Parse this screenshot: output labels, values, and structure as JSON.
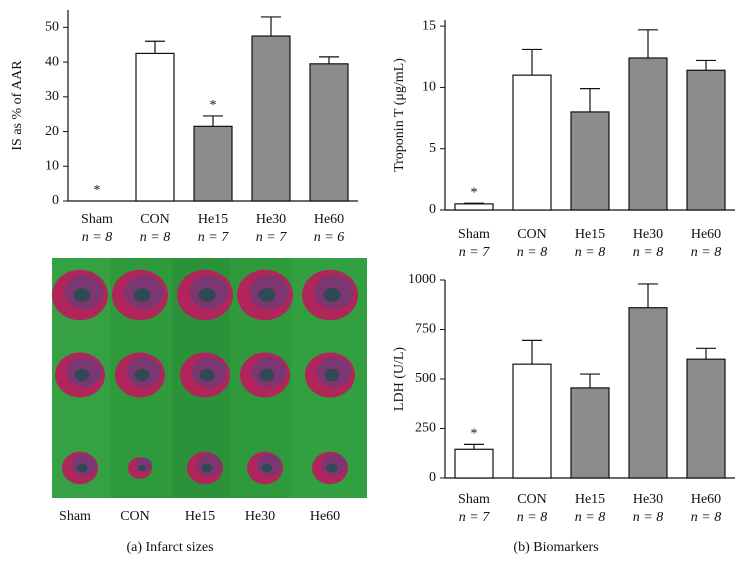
{
  "chart_data": [
    {
      "type": "bar",
      "ylabel": "IS as % of AAR",
      "categories": [
        "Sham",
        "CON",
        "He15",
        "He30",
        "He60"
      ],
      "group_sizes": [
        "n = 8",
        "n = 8",
        "n = 7",
        "n = 7",
        "n = 6"
      ],
      "values": [
        0,
        42.5,
        21.5,
        47.5,
        39.5
      ],
      "errors": [
        0,
        3.5,
        3,
        5.5,
        2
      ],
      "colors": [
        "#ffffff",
        "#ffffff",
        "#8c8c8c",
        "#8c8c8c",
        "#8c8c8c"
      ],
      "annotations": [
        "*",
        null,
        "*",
        null,
        null
      ],
      "ylim": [
        0,
        55
      ],
      "yticks": [
        0,
        10,
        20,
        30,
        40,
        50
      ]
    },
    {
      "type": "bar",
      "ylabel": "Troponin T (μg/mL)",
      "categories": [
        "Sham",
        "CON",
        "He15",
        "He30",
        "He60"
      ],
      "group_sizes": [
        "n = 7",
        "n = 8",
        "n = 8",
        "n = 8",
        "n = 8"
      ],
      "values": [
        0.5,
        11,
        8,
        12.4,
        11.4
      ],
      "errors": [
        0.05,
        2.1,
        1.9,
        2.3,
        0.8
      ],
      "colors": [
        "#ffffff",
        "#ffffff",
        "#8c8c8c",
        "#8c8c8c",
        "#8c8c8c"
      ],
      "annotations": [
        "*",
        null,
        null,
        null,
        null
      ],
      "ylim": [
        0,
        15.5
      ],
      "yticks": [
        0,
        5,
        10,
        15
      ]
    },
    {
      "type": "bar",
      "ylabel": "LDH (U/L)",
      "categories": [
        "Sham",
        "CON",
        "He15",
        "He30",
        "He60"
      ],
      "group_sizes": [
        "n = 7",
        "n = 8",
        "n = 8",
        "n = 8",
        "n = 8"
      ],
      "values": [
        145,
        575,
        455,
        860,
        600
      ],
      "errors": [
        25,
        120,
        70,
        120,
        55
      ],
      "colors": [
        "#ffffff",
        "#ffffff",
        "#8c8c8c",
        "#8c8c8c",
        "#8c8c8c"
      ],
      "annotations": [
        "*",
        null,
        null,
        null,
        null
      ],
      "ylim": [
        0,
        1000
      ],
      "yticks": [
        0,
        250,
        500,
        750,
        1000
      ]
    }
  ],
  "photo": {
    "labels": [
      "Sham",
      "CON",
      "He15",
      "He30",
      "He60"
    ]
  },
  "captions": [
    "(a)  Infarct sizes",
    "(b)  Biomarkers"
  ]
}
